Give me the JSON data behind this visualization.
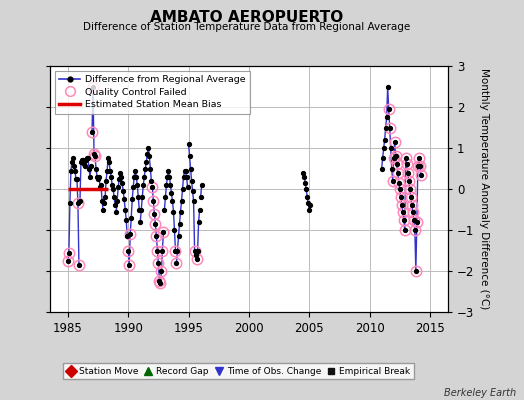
{
  "title": "AMBATO AEROPUERTO",
  "subtitle": "Difference of Station Temperature Data from Regional Average",
  "ylabel": "Monthly Temperature Anomaly Difference (°C)",
  "xlim": [
    1983.5,
    2016.5
  ],
  "ylim": [
    -3.0,
    3.0
  ],
  "yticks": [
    -3,
    -2,
    -1,
    0,
    1,
    2,
    3
  ],
  "xticks": [
    1985,
    1990,
    1995,
    2000,
    2005,
    2010,
    2015
  ],
  "bg_color": "#e0e0e0",
  "plot_bg": "#ffffff",
  "grid_color": "#bbbbbb",
  "line_color": "#3333cc",
  "dot_color": "#000000",
  "qc_edge_color": "#ff88bb",
  "bias_color": "#dd0000",
  "watermark": "Berkeley Earth",
  "segments": [
    {
      "x": [
        1985.0,
        1985.083,
        1985.167,
        1985.25,
        1985.333,
        1985.417,
        1985.5,
        1985.583,
        1985.667,
        1985.75,
        1985.833,
        1985.917
      ],
      "y": [
        -1.75,
        -1.55,
        -0.35,
        0.45,
        0.65,
        0.75,
        0.55,
        0.45,
        0.25,
        0.25,
        -0.35,
        -1.85
      ],
      "qc": [
        true,
        true,
        false,
        false,
        false,
        false,
        false,
        false,
        false,
        false,
        true,
        true
      ]
    },
    {
      "x": [
        1986.0,
        1986.083,
        1986.167,
        1986.25,
        1986.333,
        1986.417,
        1986.5,
        1986.583,
        1986.667,
        1986.75,
        1986.833,
        1986.917
      ],
      "y": [
        -0.3,
        0.65,
        0.7,
        0.7,
        0.6,
        0.55,
        0.7,
        0.75,
        0.75,
        0.5,
        0.3,
        0.55
      ],
      "qc": [
        false,
        false,
        false,
        false,
        false,
        false,
        false,
        false,
        false,
        false,
        false,
        false
      ]
    },
    {
      "x": [
        1987.0,
        1987.083,
        1987.167,
        1987.25,
        1987.333,
        1987.417,
        1987.5,
        1987.583,
        1987.667,
        1987.75,
        1987.833,
        1987.917
      ],
      "y": [
        1.4,
        2.5,
        0.85,
        0.8,
        0.5,
        0.3,
        0.25,
        0.3,
        0.05,
        0.1,
        -0.3,
        -0.5
      ],
      "qc": [
        true,
        true,
        true,
        true,
        false,
        false,
        false,
        false,
        false,
        false,
        false,
        false
      ]
    },
    {
      "x": [
        1988.0,
        1988.083,
        1988.167,
        1988.25,
        1988.333,
        1988.417,
        1988.5,
        1988.583,
        1988.667,
        1988.75,
        1988.833,
        1988.917
      ],
      "y": [
        -0.35,
        -0.2,
        0.2,
        0.45,
        0.75,
        0.65,
        0.45,
        0.3,
        0.1,
        0.0,
        -0.2,
        -0.4
      ],
      "qc": [
        false,
        false,
        false,
        false,
        false,
        false,
        false,
        false,
        false,
        false,
        false,
        false
      ]
    },
    {
      "x": [
        1989.0,
        1989.083,
        1989.167,
        1989.25,
        1989.333,
        1989.417,
        1989.5,
        1989.583,
        1989.667,
        1989.75,
        1989.833,
        1989.917
      ],
      "y": [
        -0.55,
        -0.3,
        0.05,
        0.25,
        0.4,
        0.3,
        0.15,
        -0.05,
        -0.25,
        -0.5,
        -0.75,
        -1.15
      ],
      "qc": [
        false,
        false,
        false,
        false,
        false,
        false,
        false,
        false,
        false,
        false,
        false,
        false
      ]
    },
    {
      "x": [
        1990.0,
        1990.083,
        1990.167,
        1990.25,
        1990.333,
        1990.417,
        1990.5,
        1990.583,
        1990.667,
        1990.75,
        1990.833,
        1990.917
      ],
      "y": [
        -1.5,
        -1.85,
        -1.1,
        -0.7,
        -0.25,
        0.05,
        0.3,
        0.45,
        0.3,
        0.1,
        -0.2,
        -0.5
      ],
      "qc": [
        true,
        true,
        true,
        false,
        false,
        false,
        false,
        false,
        false,
        false,
        false,
        false
      ]
    },
    {
      "x": [
        1991.0,
        1991.083,
        1991.167,
        1991.25,
        1991.333,
        1991.417,
        1991.5,
        1991.583,
        1991.667,
        1991.75,
        1991.833,
        1991.917
      ],
      "y": [
        -0.8,
        -0.5,
        -0.2,
        0.1,
        0.3,
        0.5,
        0.65,
        0.85,
        1.0,
        0.8,
        0.5,
        0.2
      ],
      "qc": [
        false,
        false,
        false,
        false,
        false,
        false,
        false,
        false,
        false,
        false,
        false,
        false
      ]
    },
    {
      "x": [
        1992.0,
        1992.083,
        1992.167,
        1992.25,
        1992.333,
        1992.417,
        1992.5,
        1992.583,
        1992.667,
        1992.75,
        1992.833,
        1992.917
      ],
      "y": [
        0.05,
        -0.3,
        -0.6,
        -0.85,
        -1.15,
        -1.5,
        -1.8,
        -2.25,
        -2.3,
        -2.0,
        -1.5,
        -1.05
      ],
      "qc": [
        true,
        true,
        true,
        true,
        true,
        true,
        true,
        true,
        true,
        true,
        true,
        true
      ]
    },
    {
      "x": [
        1993.0,
        1993.083,
        1993.167,
        1993.25,
        1993.333,
        1993.417,
        1993.5,
        1993.583,
        1993.667,
        1993.75,
        1993.833,
        1993.917
      ],
      "y": [
        -0.5,
        -0.2,
        0.1,
        0.3,
        0.45,
        0.3,
        0.1,
        -0.1,
        -0.3,
        -0.55,
        -1.0,
        -1.5
      ],
      "qc": [
        false,
        false,
        false,
        false,
        false,
        false,
        false,
        false,
        false,
        false,
        false,
        true
      ]
    },
    {
      "x": [
        1994.0,
        1994.083,
        1994.167,
        1994.25,
        1994.333,
        1994.417,
        1994.5,
        1994.583,
        1994.667,
        1994.75,
        1994.833,
        1994.917
      ],
      "y": [
        -1.8,
        -1.5,
        -1.15,
        -0.85,
        -0.55,
        -0.3,
        0.0,
        0.3,
        0.45,
        0.45,
        0.3,
        0.05
      ],
      "qc": [
        true,
        false,
        false,
        false,
        false,
        false,
        false,
        false,
        false,
        false,
        false,
        false
      ]
    },
    {
      "x": [
        1995.0,
        1995.083,
        1995.167,
        1995.25,
        1995.333,
        1995.417,
        1995.5,
        1995.583,
        1995.667,
        1995.75,
        1995.833,
        1995.917
      ],
      "y": [
        1.1,
        0.8,
        0.5,
        0.2,
        -0.05,
        -0.3,
        -1.5,
        -1.6,
        -1.7,
        -1.5,
        -0.8,
        -0.5
      ],
      "qc": [
        false,
        false,
        false,
        false,
        false,
        false,
        true,
        false,
        true,
        false,
        false,
        false
      ]
    },
    {
      "x": [
        1996.0,
        1996.083
      ],
      "y": [
        -0.2,
        0.1
      ],
      "qc": [
        false,
        false
      ]
    },
    {
      "x": [
        2004.5,
        2004.583,
        2004.667,
        2004.75,
        2004.833,
        2004.917,
        2005.0,
        2005.083
      ],
      "y": [
        0.4,
        0.3,
        0.15,
        0.0,
        -0.2,
        -0.35,
        -0.5,
        -0.4
      ],
      "qc": [
        false,
        false,
        false,
        false,
        false,
        false,
        false,
        false
      ]
    },
    {
      "x": [
        2011.0,
        2011.083,
        2011.167,
        2011.25,
        2011.333,
        2011.417,
        2011.5,
        2011.583,
        2011.667,
        2011.75,
        2011.833,
        2011.917,
        2012.0,
        2012.083,
        2012.167,
        2012.25,
        2012.333,
        2012.417,
        2012.5,
        2012.583,
        2012.667,
        2012.75,
        2012.833,
        2012.917,
        2013.0,
        2013.083,
        2013.167,
        2013.25,
        2013.333,
        2013.417,
        2013.5,
        2013.583,
        2013.667,
        2013.75,
        2013.833,
        2013.917,
        2014.0,
        2014.083,
        2014.167,
        2014.25
      ],
      "y": [
        0.5,
        0.75,
        1.0,
        1.2,
        1.5,
        1.75,
        2.5,
        1.95,
        1.5,
        1.0,
        0.5,
        0.2,
        0.75,
        1.15,
        0.8,
        0.6,
        0.4,
        0.15,
        0.0,
        -0.2,
        -0.4,
        -0.55,
        -0.75,
        -1.0,
        0.75,
        0.6,
        0.4,
        0.2,
        0.0,
        -0.2,
        -0.4,
        -0.55,
        -0.75,
        -1.0,
        -2.0,
        -0.8,
        0.55,
        0.75,
        0.55,
        0.35
      ],
      "qc": [
        false,
        false,
        false,
        false,
        false,
        false,
        false,
        true,
        true,
        false,
        false,
        true,
        true,
        true,
        true,
        true,
        true,
        true,
        true,
        true,
        true,
        true,
        true,
        true,
        true,
        true,
        true,
        true,
        true,
        true,
        true,
        true,
        true,
        true,
        true,
        true,
        true,
        true,
        true,
        true
      ]
    }
  ],
  "bias_segments": [
    {
      "x_start": 1985.0,
      "x_end": 1988.3,
      "y": 0.0
    }
  ]
}
